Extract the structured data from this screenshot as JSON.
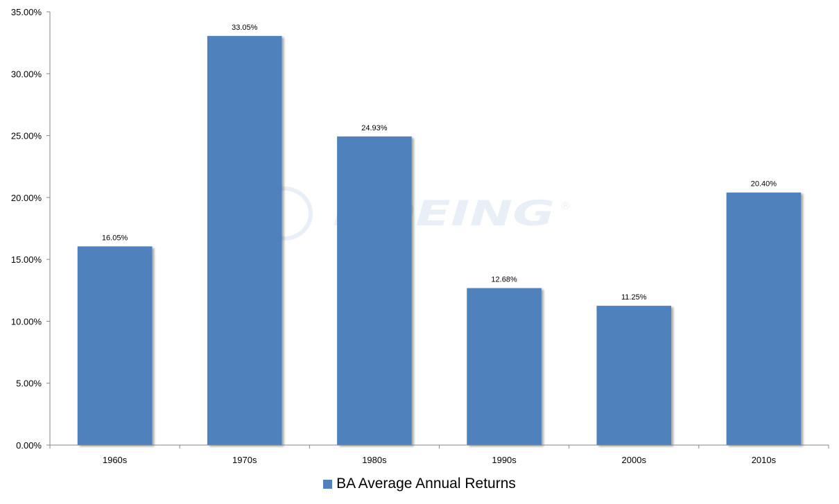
{
  "colors": {
    "bar": "#4F81BD",
    "axis": "#868686",
    "watermark": "#4F81BD"
  },
  "watermark": {
    "text": "BOEING",
    "mark": "®"
  },
  "chart_data": {
    "type": "bar",
    "categories": [
      "1960s",
      "1970s",
      "1980s",
      "1990s",
      "2000s",
      "2010s"
    ],
    "series": [
      {
        "name": "BA Average Annual Returns",
        "values": [
          16.05,
          33.05,
          24.93,
          12.68,
          11.25,
          20.4
        ]
      }
    ],
    "data_labels": [
      "16.05%",
      "33.05%",
      "24.93%",
      "12.68%",
      "11.25%",
      "20.40%"
    ],
    "y_ticks": [
      "0.00%",
      "5.00%",
      "10.00%",
      "15.00%",
      "20.00%",
      "25.00%",
      "30.00%",
      "35.00%"
    ],
    "ylim": [
      0,
      35
    ],
    "y_step": 5,
    "grid": false,
    "legend_position": "bottom"
  }
}
